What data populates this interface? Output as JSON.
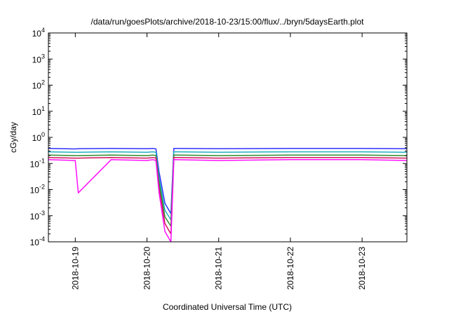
{
  "chart_data": {
    "type": "line",
    "title": "/data/run/goesPlots/archive/2018-10-23/15:00/flux/../bryn/5daysEarth.plot",
    "xlabel": "Coordinated Universal Time (UTC)",
    "ylabel": "cGy/day",
    "yscale": "log",
    "ylim": [
      0.0001,
      10000
    ],
    "xlim": [
      "2018-10-18 15:00",
      "2018-10-23 15:00"
    ],
    "y_ticks": [
      {
        "value": 0.0001,
        "base": "10",
        "exp": "-4"
      },
      {
        "value": 0.001,
        "base": "10",
        "exp": "-3"
      },
      {
        "value": 0.01,
        "base": "10",
        "exp": "-2"
      },
      {
        "value": 0.1,
        "base": "10",
        "exp": "-1"
      },
      {
        "value": 1,
        "base": "10",
        "exp": "0"
      },
      {
        "value": 10,
        "base": "10",
        "exp": "1"
      },
      {
        "value": 100,
        "base": "10",
        "exp": "2"
      },
      {
        "value": 1000,
        "base": "10",
        "exp": "3"
      },
      {
        "value": 10000,
        "base": "10",
        "exp": "4"
      }
    ],
    "x_ticks": [
      {
        "value": "2018-10-19",
        "label": "2018-10-19"
      },
      {
        "value": "2018-10-20",
        "label": "2018-10-20"
      },
      {
        "value": "2018-10-21",
        "label": "2018-10-21"
      },
      {
        "value": "2018-10-22",
        "label": "2018-10-22"
      },
      {
        "value": "2018-10-23",
        "label": "2018-10-23"
      }
    ],
    "grid": false,
    "legend": "none",
    "x": [
      "2018-10-18 15:00",
      "2018-10-19 00:00",
      "2018-10-19 01:00",
      "2018-10-19 12:00",
      "2018-10-20 00:00",
      "2018-10-20 02:00",
      "2018-10-20 03:00",
      "2018-10-20 04:00",
      "2018-10-20 06:00",
      "2018-10-20 08:00",
      "2018-10-20 09:00",
      "2018-10-21 00:00",
      "2018-10-22 00:00",
      "2018-10-23 00:00",
      "2018-10-23 15:00"
    ],
    "series": [
      {
        "color": "#3030ff",
        "values": [
          0.38,
          0.36,
          0.37,
          0.38,
          0.37,
          0.38,
          0.36,
          0.05,
          0.003,
          0.0012,
          0.38,
          0.37,
          0.38,
          0.38,
          0.37
        ]
      },
      {
        "color": "#20b0c0",
        "values": [
          0.28,
          0.27,
          0.27,
          0.28,
          0.27,
          0.28,
          0.27,
          0.03,
          0.0016,
          0.0007,
          0.28,
          0.27,
          0.28,
          0.28,
          0.27
        ]
      },
      {
        "color": "#2e8b2e",
        "values": [
          0.21,
          0.2,
          0.2,
          0.21,
          0.2,
          0.21,
          0.2,
          0.02,
          0.0009,
          0.0004,
          0.21,
          0.2,
          0.21,
          0.21,
          0.2
        ]
      },
      {
        "color": "#d0145a",
        "values": [
          0.17,
          0.16,
          0.16,
          0.17,
          0.16,
          0.17,
          0.16,
          0.012,
          0.0005,
          0.0002,
          0.17,
          0.16,
          0.17,
          0.17,
          0.16
        ]
      },
      {
        "color": "#ff10ff",
        "values": [
          0.14,
          0.13,
          0.0075,
          0.14,
          0.13,
          0.14,
          0.13,
          0.008,
          0.00025,
          0.0001,
          0.14,
          0.13,
          0.14,
          0.14,
          0.13
        ]
      }
    ]
  }
}
